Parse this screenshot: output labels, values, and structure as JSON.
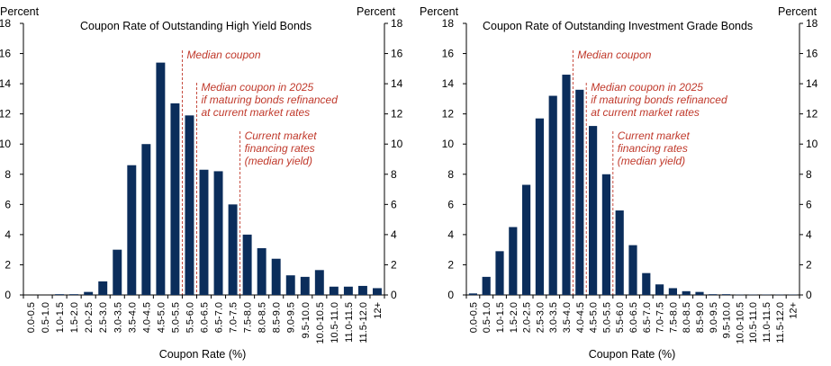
{
  "colors": {
    "bar": "#0b2d5b",
    "annotation": "#c0392b",
    "axis": "#000000"
  },
  "chart_data": [
    {
      "type": "bar",
      "title": "Coupon Rate of Outstanding High Yield Bonds",
      "ylabel_left": "Percent",
      "ylabel_right": "Percent",
      "xlabel": "Coupon Rate (%)",
      "ylim": [
        0,
        18
      ],
      "yticks": [
        "0",
        "2",
        "4",
        "6",
        "8",
        "10",
        "12",
        "14",
        "16",
        "18"
      ],
      "categories": [
        "0.0-0.5",
        "0.5-1.0",
        "1.0-1.5",
        "1.5-2.0",
        "2.0-2.5",
        "2.5-3.0",
        "3.0-3.5",
        "3.5-4.0",
        "4.0-4.5",
        "4.5-5.0",
        "5.0-5.5",
        "5.5-6.0",
        "6.0-6.5",
        "6.5-7.0",
        "7.0-7.5",
        "7.5-8.0",
        "8.0-8.5",
        "8.5-9.0",
        "9.0-9.5",
        "9.5-10.0",
        "10.0-10.5",
        "10.5-11.0",
        "11.0-11.5",
        "11.5-12.0",
        "12+"
      ],
      "values": [
        0.0,
        0.0,
        0.05,
        0.05,
        0.2,
        0.9,
        3.0,
        8.6,
        10.0,
        15.4,
        12.7,
        11.9,
        8.3,
        8.2,
        6.0,
        4.0,
        3.1,
        2.4,
        1.3,
        1.2,
        1.65,
        0.55,
        0.55,
        0.6,
        0.45
      ],
      "annotations": [
        {
          "lines": [
            "Median coupon"
          ],
          "x_position": 5.5
        },
        {
          "lines": [
            "Median coupon in 2025",
            "if maturing bonds refinanced",
            "at current market rates"
          ],
          "x_position": 6.0
        },
        {
          "lines": [
            "Current market",
            "financing rates",
            "(median yield)"
          ],
          "x_position": 7.5
        }
      ]
    },
    {
      "type": "bar",
      "title": "Coupon Rate of Outstanding Investment Grade Bonds",
      "ylabel_left": "Percent",
      "ylabel_right": "Percent",
      "xlabel": "Coupon Rate (%)",
      "ylim": [
        0,
        18
      ],
      "yticks": [
        "0",
        "2",
        "4",
        "6",
        "8",
        "10",
        "12",
        "14",
        "16",
        "18"
      ],
      "categories": [
        "0.0-0.5",
        "0.5-1.0",
        "1.0-1.5",
        "1.5-2.0",
        "2.0-2.5",
        "2.5-3.0",
        "3.0-3.5",
        "3.5-4.0",
        "4.0-4.5",
        "4.5-5.0",
        "5.0-5.5",
        "5.5-6.0",
        "6.0-6.5",
        "6.5-7.0",
        "7.0-7.5",
        "7.5-8.0",
        "8.0-8.5",
        "8.5-9.0",
        "9.0-9.5",
        "9.5-10.0",
        "10.0-10.5",
        "10.5-11.0",
        "11.0-11.5",
        "11.5-12.0",
        "12+"
      ],
      "values": [
        0.1,
        1.2,
        2.9,
        4.5,
        7.3,
        11.7,
        13.2,
        14.6,
        13.6,
        11.2,
        8.0,
        5.6,
        3.3,
        1.45,
        0.7,
        0.45,
        0.25,
        0.2,
        0.05,
        0.05,
        0.02,
        0.02,
        0.02,
        0.02,
        0.02
      ],
      "annotations": [
        {
          "lines": [
            "Median coupon"
          ],
          "x_position": 4.0
        },
        {
          "lines": [
            "Median coupon in 2025",
            "if maturing bonds refinanced",
            "at current market rates"
          ],
          "x_position": 4.5
        },
        {
          "lines": [
            "Current market",
            "financing rates",
            "(median yield)"
          ],
          "x_position": 5.5
        }
      ]
    }
  ]
}
